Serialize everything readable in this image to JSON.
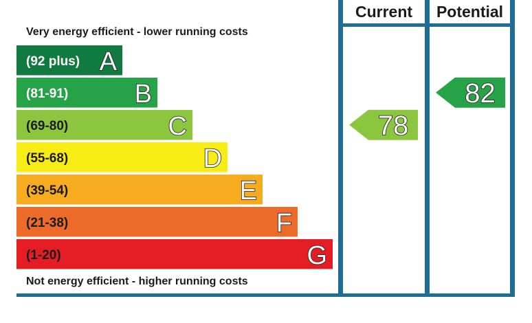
{
  "chart_data": {
    "type": "bar",
    "top_caption": "Very energy efficient - lower running costs",
    "bottom_caption": "Not energy efficient - higher running costs",
    "columns": [
      "Current",
      "Potential"
    ],
    "bands": [
      {
        "letter": "A",
        "range": "(92 plus)",
        "color": "#117a3e",
        "text_color": "#ffffff"
      },
      {
        "letter": "B",
        "range": "(81-91)",
        "color": "#27a347",
        "text_color": "#ffffff"
      },
      {
        "letter": "C",
        "range": "(69-80)",
        "color": "#8cc63f",
        "text_color": "#1a1a1a"
      },
      {
        "letter": "D",
        "range": "(55-68)",
        "color": "#f7ec13",
        "text_color": "#1a1a1a"
      },
      {
        "letter": "E",
        "range": "(39-54)",
        "color": "#f7ac20",
        "text_color": "#1a1a1a"
      },
      {
        "letter": "F",
        "range": "(21-38)",
        "color": "#ec6b28",
        "text_color": "#1a1a1a"
      },
      {
        "letter": "G",
        "range": "(1-20)",
        "color": "#e31d23",
        "text_color": "#1a1a1a"
      }
    ],
    "ratings": [
      {
        "column": "Current",
        "value": "78",
        "band": "C",
        "color": "#8cc63f"
      },
      {
        "column": "Potential",
        "value": "82",
        "band": "B",
        "color": "#27a347"
      }
    ],
    "frame_color": "#1f6d94"
  }
}
